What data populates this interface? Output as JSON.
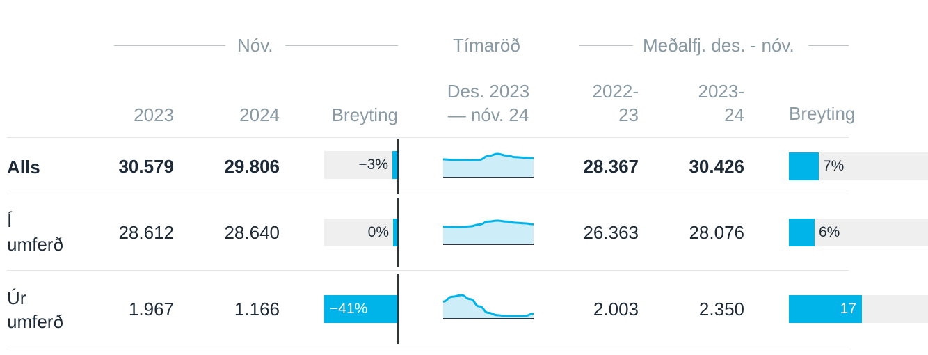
{
  "header": {
    "group_nov": "Nóv.",
    "group_timeseries": "Tímaröð",
    "group_avg": "Meðalfj. des. - nóv.",
    "col_2023": "2023",
    "col_2024": "2024",
    "col_change": "Breyting",
    "col_timeseries_line1": "Des. 2023",
    "col_timeseries_line2": "— nóv. 24",
    "col_avg1_line1": "2022-",
    "col_avg1_line2": "23",
    "col_avg2_line1": "2023-",
    "col_avg2_line2": "24",
    "col_change2": "Breyting"
  },
  "rows": [
    {
      "label_line1": "Alls",
      "label_line2": "",
      "v2023": "30.579",
      "v2024": "29.806",
      "change_label": "−3%",
      "change_pct": -3,
      "trend": [
        29.0,
        28.9,
        28.9,
        28.8,
        28.9,
        29.6,
        30.0,
        29.7,
        29.4,
        29.3,
        29.2
      ],
      "avg1": "28.367",
      "avg2": "30.426",
      "change2_label": "7%",
      "change2_pct": 7
    },
    {
      "label_line1": "Í",
      "label_line2": "umferð",
      "v2023": "28.612",
      "v2024": "28.640",
      "change_label": "0%",
      "change_pct": 0,
      "trend": [
        27.6,
        27.4,
        27.4,
        27.7,
        28.3,
        29.3,
        29.6,
        29.3,
        28.9,
        28.7,
        28.4
      ],
      "avg1": "26.363",
      "avg2": "28.076",
      "change2_label": "6%",
      "change2_pct": 6
    },
    {
      "label_line1": "Úr",
      "label_line2": "umferð",
      "v2023": "1.967",
      "v2024": "1.166",
      "change_label": "−41%",
      "change_pct": -41,
      "trend": [
        2.05,
        2.35,
        2.45,
        2.2,
        1.75,
        1.35,
        1.2,
        1.15,
        1.15,
        1.15,
        1.3
      ],
      "avg1": "2.003",
      "avg2": "2.350",
      "change2_label": "17",
      "change2_pct": 17
    }
  ],
  "colors": {
    "accent": "#00b3e8",
    "spark_fill": "#cdeef9",
    "bar_bg": "#efefef",
    "muted_text": "#8a9aa3",
    "text": "#1e2b37"
  }
}
